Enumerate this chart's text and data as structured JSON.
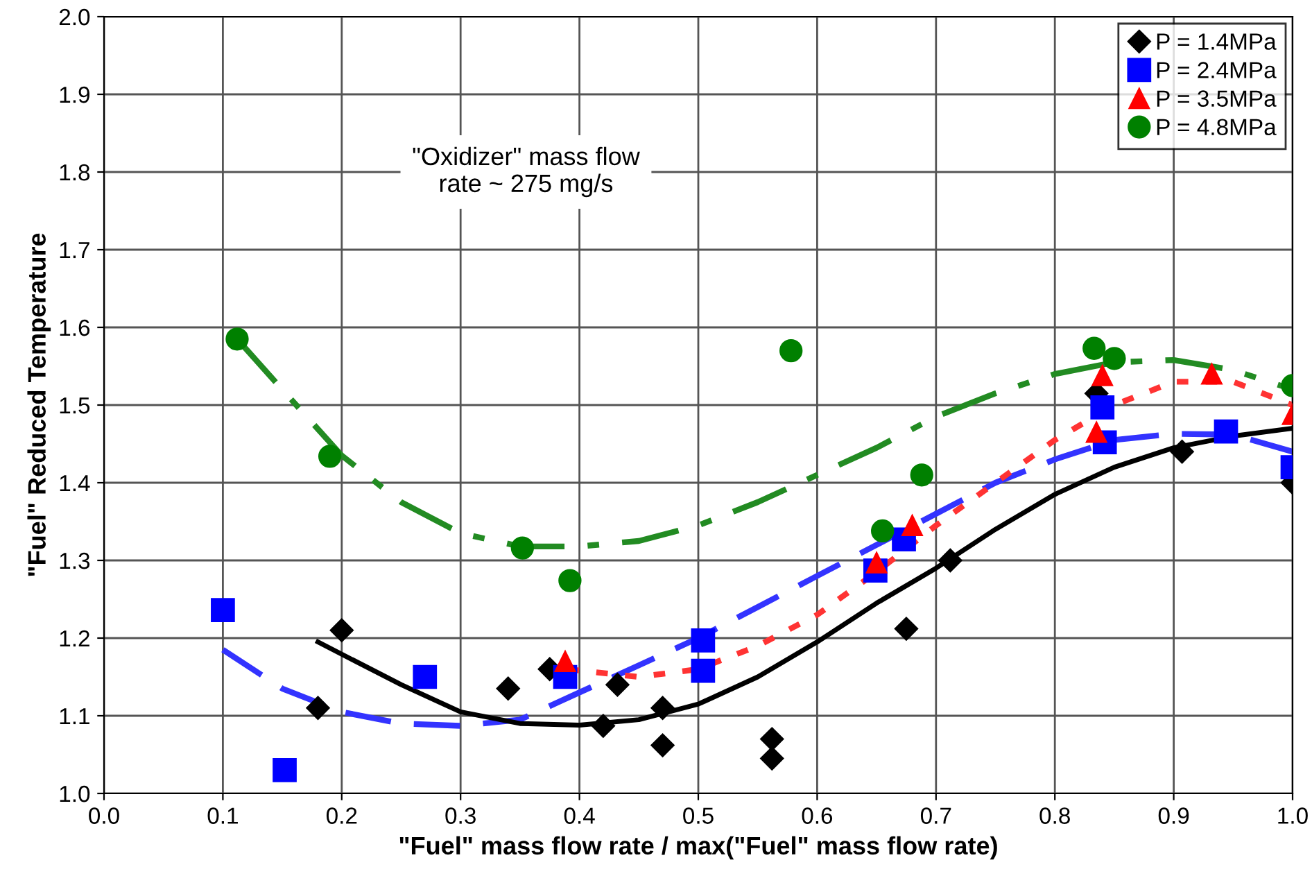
{
  "chart_data": {
    "type": "scatter",
    "xlabel": "\"Fuel\" mass flow rate / max(\"Fuel\" mass flow rate)",
    "ylabel": "\"Fuel\" Reduced Temperature",
    "xlim": [
      0,
      1
    ],
    "ylim": [
      1,
      2
    ],
    "xticks": [
      {
        "value": 0,
        "label": "0.0"
      },
      {
        "value": 0.1,
        "label": "0.1"
      },
      {
        "value": 0.2,
        "label": "0.2"
      },
      {
        "value": 0.3,
        "label": "0.3"
      },
      {
        "value": 0.4,
        "label": "0.4"
      },
      {
        "value": 0.5,
        "label": "0.5"
      },
      {
        "value": 0.6,
        "label": "0.6"
      },
      {
        "value": 0.7,
        "label": "0.7"
      },
      {
        "value": 0.8,
        "label": "0.8"
      },
      {
        "value": 0.9,
        "label": "0.9"
      },
      {
        "value": 1,
        "label": "1.0"
      }
    ],
    "yticks": [
      {
        "value": 1,
        "label": "1.0"
      },
      {
        "value": 1.1,
        "label": "1.1"
      },
      {
        "value": 1.2,
        "label": "1.2"
      },
      {
        "value": 1.3,
        "label": "1.3"
      },
      {
        "value": 1.4,
        "label": "1.4"
      },
      {
        "value": 1.5,
        "label": "1.5"
      },
      {
        "value": 1.6,
        "label": "1.6"
      },
      {
        "value": 1.7,
        "label": "1.7"
      },
      {
        "value": 1.8,
        "label": "1.8"
      },
      {
        "value": 1.9,
        "label": "1.9"
      },
      {
        "value": 2,
        "label": "2.0"
      }
    ],
    "grid": true,
    "legend": "top right",
    "annotations": [
      {
        "text": "\"Oxidizer\" mass flow\nrate ~ 275 mg/s"
      }
    ],
    "series": [
      {
        "type": "line",
        "color": "#3333ff",
        "line_style": "dashed",
        "x": [
          0.1,
          0.15,
          0.2,
          0.25,
          0.3,
          0.35,
          0.4,
          0.45,
          0.5,
          0.55,
          0.6,
          0.65,
          0.7,
          0.75,
          0.8,
          0.85,
          0.9,
          0.95,
          1.0
        ],
        "values": [
          1.185,
          1.135,
          1.105,
          1.09,
          1.087,
          1.095,
          1.13,
          1.165,
          1.2,
          1.24,
          1.28,
          1.32,
          1.36,
          1.4,
          1.43,
          1.455,
          1.463,
          1.462,
          1.44
        ]
      },
      {
        "type": "line",
        "color": "#ff3333",
        "line_style": "dotted",
        "x": [
          0.39,
          0.45,
          0.5,
          0.55,
          0.6,
          0.65,
          0.7,
          0.75,
          0.8,
          0.85,
          0.9,
          0.95,
          1.0
        ],
        "values": [
          1.16,
          1.15,
          1.16,
          1.19,
          1.23,
          1.285,
          1.345,
          1.4,
          1.455,
          1.5,
          1.53,
          1.53,
          1.5
        ]
      },
      {
        "type": "line",
        "color": "#228b22",
        "line_style": "dashdot",
        "x": [
          0.112,
          0.15,
          0.2,
          0.25,
          0.3,
          0.35,
          0.4,
          0.45,
          0.5,
          0.55,
          0.6,
          0.65,
          0.7,
          0.75,
          0.8,
          0.85,
          0.9,
          0.95,
          1.0
        ],
        "values": [
          1.585,
          1.52,
          1.435,
          1.375,
          1.335,
          1.318,
          1.318,
          1.325,
          1.345,
          1.375,
          1.41,
          1.445,
          1.485,
          1.515,
          1.54,
          1.555,
          1.558,
          1.545,
          1.52
        ]
      },
      {
        "type": "line",
        "color": "#000000",
        "line_style": "solid",
        "x": [
          0.18,
          0.25,
          0.3,
          0.35,
          0.4,
          0.45,
          0.5,
          0.55,
          0.6,
          0.65,
          0.7,
          0.75,
          0.8,
          0.85,
          0.9,
          0.95,
          1.0
        ],
        "values": [
          1.195,
          1.14,
          1.105,
          1.09,
          1.088,
          1.095,
          1.115,
          1.15,
          1.195,
          1.245,
          1.29,
          1.34,
          1.385,
          1.42,
          1.445,
          1.46,
          1.47
        ]
      },
      {
        "name": "P = 1.4MPa",
        "color": "#000000",
        "marker": "diamond",
        "x": [
          0.18,
          0.2,
          0.34,
          0.375,
          0.42,
          0.432,
          0.47,
          0.47,
          0.562,
          0.562,
          0.675,
          0.712,
          0.835,
          0.907,
          1.0
        ],
        "values": [
          1.11,
          1.21,
          1.135,
          1.16,
          1.087,
          1.14,
          1.11,
          1.062,
          1.07,
          1.045,
          1.212,
          1.3,
          1.515,
          1.44,
          1.4
        ]
      },
      {
        "name": "P = 2.4MPa",
        "color": "#0000ff",
        "marker": "square",
        "x": [
          0.1,
          0.152,
          0.27,
          0.388,
          0.504,
          0.504,
          0.649,
          0.673,
          0.84,
          0.842,
          0.944,
          1.0
        ],
        "values": [
          1.236,
          1.03,
          1.15,
          1.15,
          1.197,
          1.158,
          1.287,
          1.327,
          1.497,
          1.452,
          1.466,
          1.42
        ]
      },
      {
        "name": "P = 3.5MPa",
        "color": "#ff0000",
        "marker": "triangle",
        "x": [
          0.388,
          0.65,
          0.68,
          0.835,
          0.84,
          0.932,
          1.0
        ],
        "values": [
          1.17,
          1.297,
          1.345,
          1.465,
          1.538,
          1.54,
          1.488
        ]
      },
      {
        "name": "P = 4.8MPa",
        "color": "#008000",
        "marker": "circle",
        "x": [
          0.112,
          0.19,
          0.352,
          0.392,
          0.578,
          0.655,
          0.688,
          0.833,
          0.85,
          1.0
        ],
        "values": [
          1.585,
          1.434,
          1.316,
          1.274,
          1.57,
          1.338,
          1.41,
          1.573,
          1.56,
          1.525
        ]
      }
    ]
  }
}
